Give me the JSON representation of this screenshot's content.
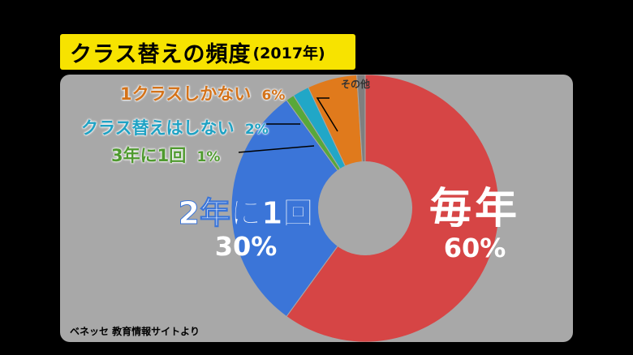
{
  "title": {
    "main": "クラス替えの頻度",
    "sub": "(2017年)"
  },
  "source": "ベネッセ 教育情報サイトより",
  "chart_data": {
    "type": "pie",
    "donut": true,
    "categories": [
      "毎年",
      "2年に1回",
      "3年に1回",
      "クラス替えはしない",
      "1クラスしかない",
      "その他"
    ],
    "values": [
      60,
      30,
      1,
      2,
      6,
      1
    ],
    "value_labels": [
      "60%",
      "30%",
      "1%",
      "2%",
      "6%",
      ""
    ],
    "colors": [
      "#d64545",
      "#3b75d8",
      "#58a83a",
      "#21a7c7",
      "#e07a1c",
      "#7f7f7f"
    ]
  }
}
